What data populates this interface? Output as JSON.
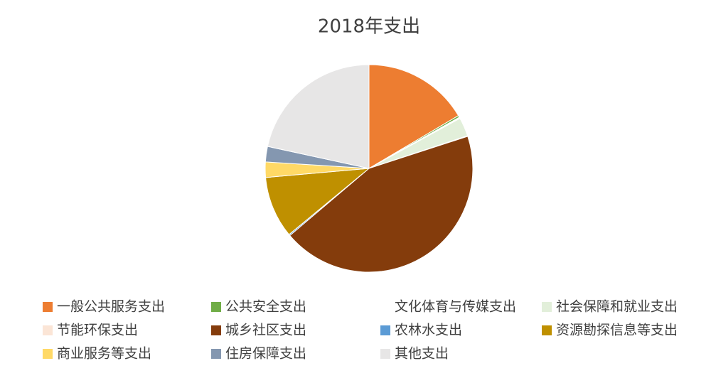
{
  "chart_data": {
    "type": "pie",
    "title": "2018年支出",
    "categories": [
      "一般公共服务支出",
      "公共安全支出",
      "文化体育与传媒支出",
      "社会保障和就业支出",
      "节能环保支出",
      "城乡社区支出",
      "农林水支出",
      "资源勘探信息等支出",
      "商业服务等支出",
      "住房保障支出",
      "其他支出"
    ],
    "values": [
      16.5,
      0.3,
      0.2,
      2.9,
      0.1,
      43.8,
      0.2,
      9.6,
      2.4,
      2.4,
      21.6
    ],
    "colors": [
      "#ED7D31",
      "#70AD47",
      "#FFFFFF",
      "#E2EFDA",
      "#FBE5D6",
      "#843C0C",
      "#5B9BD5",
      "#BF9000",
      "#FFD966",
      "#8497B0",
      "#E7E6E6"
    ],
    "legend": "bottom"
  }
}
